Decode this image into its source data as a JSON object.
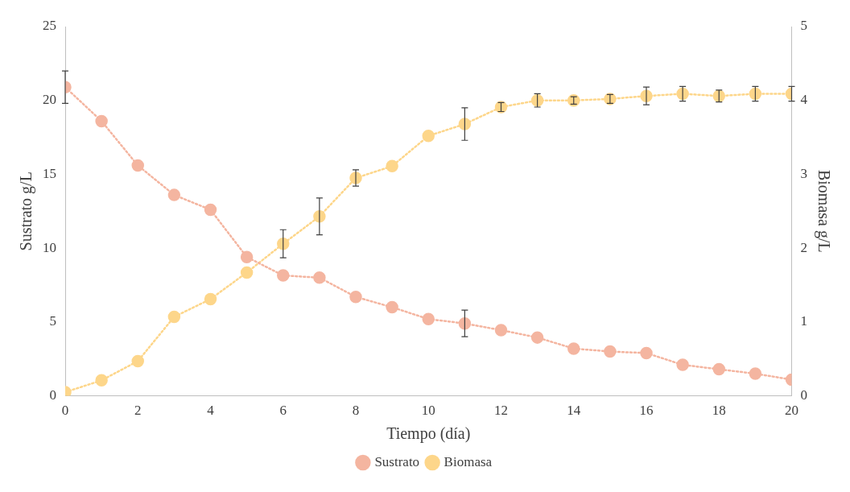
{
  "chart_data": {
    "type": "line",
    "xlabel": "Tiempo (día)",
    "ylabel": "Sustrato g/L",
    "y2label": "Biomasa g/L",
    "x": [
      0,
      1,
      2,
      3,
      4,
      5,
      6,
      7,
      8,
      9,
      10,
      11,
      12,
      13,
      14,
      15,
      16,
      17,
      18,
      19,
      20
    ],
    "xlim": [
      0,
      20
    ],
    "xticks": [
      0,
      2,
      4,
      6,
      8,
      10,
      12,
      14,
      16,
      18,
      20
    ],
    "ylim": [
      0,
      25
    ],
    "yticks": [
      0,
      5,
      10,
      15,
      20,
      25
    ],
    "y2lim": [
      0,
      5
    ],
    "y2ticks": [
      0,
      1,
      2,
      3,
      4,
      5
    ],
    "grid": false,
    "legend": "bottom",
    "marker": "circle",
    "line_style": "dotted",
    "series": [
      {
        "name": "Sustrato",
        "color": "#f4b5a0",
        "values": [
          20.9,
          18.6,
          15.6,
          13.6,
          12.6,
          9.4,
          8.15,
          8.0,
          6.7,
          6.0,
          5.2,
          4.9,
          4.45,
          3.95,
          3.2,
          3.0,
          2.9,
          2.1,
          1.8,
          1.5,
          1.1
        ],
        "errors": [
          1.1,
          null,
          null,
          null,
          null,
          null,
          null,
          null,
          null,
          null,
          null,
          0.9,
          null,
          null,
          null,
          null,
          null,
          null,
          null,
          null,
          null
        ]
      },
      {
        "name": "Biomasa",
        "color": "#fdd68a",
        "axis": "y2",
        "values": [
          0.05,
          0.21,
          0.47,
          1.07,
          1.31,
          1.67,
          2.06,
          2.43,
          2.95,
          3.11,
          3.52,
          3.68,
          3.91,
          4.0,
          4.0,
          4.02,
          4.06,
          4.09,
          4.06,
          4.09,
          4.09
        ],
        "errors": [
          null,
          null,
          null,
          null,
          null,
          null,
          0.19,
          0.25,
          0.11,
          null,
          null,
          0.22,
          0.06,
          0.09,
          0.05,
          0.06,
          0.12,
          0.1,
          0.08,
          0.1,
          0.1
        ]
      }
    ]
  }
}
